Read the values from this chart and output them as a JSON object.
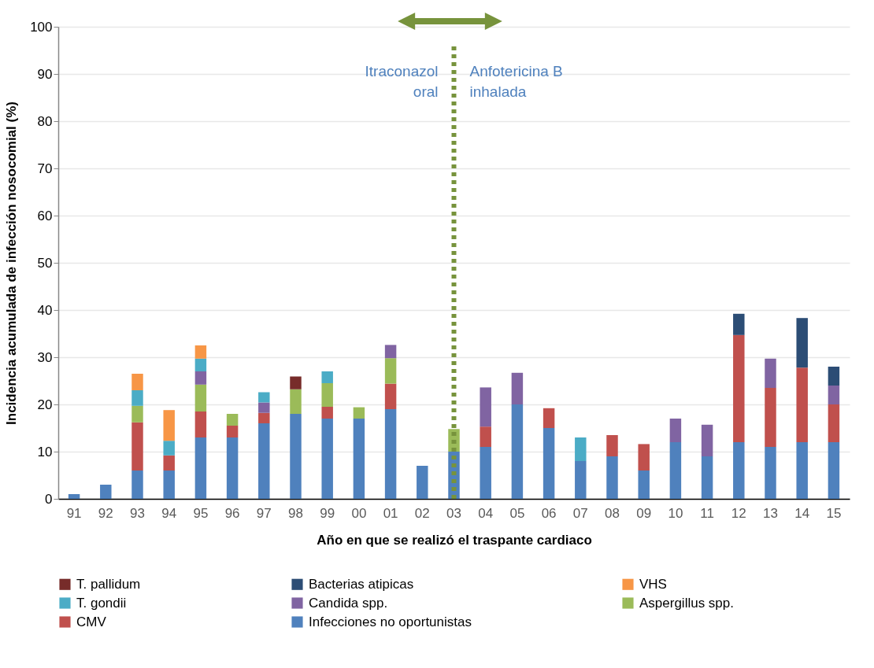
{
  "chart_data": {
    "type": "bar",
    "stacked": true,
    "xlabel": "Año en que se realizó el traspante cardiaco",
    "ylabel": "Incidencia acumulada de infección nosocomial (%)",
    "categories": [
      "91",
      "92",
      "93",
      "94",
      "95",
      "96",
      "97",
      "98",
      "99",
      "00",
      "01",
      "02",
      "03",
      "04",
      "05",
      "06",
      "07",
      "08",
      "09",
      "10",
      "11",
      "12",
      "13",
      "14",
      "15"
    ],
    "series": [
      {
        "name": "Infecciones no oportunistas",
        "color": "#4f81bd",
        "values": [
          1,
          3,
          6,
          6,
          13,
          13,
          16,
          18,
          17,
          17,
          19,
          7,
          10,
          11,
          20,
          15,
          8,
          9,
          6,
          12,
          9,
          12,
          11,
          12,
          12
        ]
      },
      {
        "name": "CMV",
        "color": "#c0504d",
        "values": [
          null,
          null,
          10.2,
          3.2,
          5.5,
          2.5,
          2.2,
          null,
          2.5,
          null,
          5.4,
          null,
          null,
          4.3,
          null,
          4.2,
          null,
          4.5,
          5.6,
          null,
          null,
          22.7,
          12.5,
          15.8,
          8
        ]
      },
      {
        "name": "Aspergillus spp.",
        "color": "#9bbb59",
        "values": [
          null,
          null,
          3.5,
          null,
          5.7,
          2.5,
          null,
          5.2,
          5,
          2.4,
          5.4,
          null,
          4.8,
          null,
          null,
          null,
          null,
          null,
          null,
          null,
          null,
          null,
          null,
          null,
          null
        ]
      },
      {
        "name": "Candida spp.",
        "color": "#8064a2",
        "values": [
          null,
          null,
          null,
          null,
          2.8,
          null,
          2.2,
          null,
          null,
          null,
          2.8,
          null,
          null,
          8.3,
          6.7,
          null,
          null,
          null,
          null,
          5,
          6.7,
          null,
          6.2,
          null,
          4
        ]
      },
      {
        "name": "T. gondii",
        "color": "#4bacc6",
        "values": [
          null,
          null,
          3.3,
          3.1,
          2.7,
          null,
          2.2,
          null,
          2.5,
          null,
          null,
          null,
          null,
          null,
          null,
          null,
          5,
          null,
          null,
          null,
          null,
          null,
          null,
          null,
          null
        ]
      },
      {
        "name": "VHS",
        "color": "#f79646",
        "values": [
          null,
          null,
          3.5,
          6.5,
          2.8,
          null,
          null,
          null,
          null,
          null,
          null,
          null,
          null,
          null,
          null,
          null,
          null,
          null,
          null,
          null,
          null,
          null,
          null,
          null,
          null
        ]
      },
      {
        "name": "Bacterias atipicas",
        "color": "#2c4d75",
        "values": [
          null,
          null,
          null,
          null,
          null,
          null,
          null,
          null,
          null,
          null,
          null,
          null,
          null,
          null,
          null,
          null,
          null,
          null,
          null,
          null,
          null,
          4.5,
          null,
          10.5,
          4
        ]
      },
      {
        "name": "T. pallidum",
        "color": "#772c2a",
        "values": [
          null,
          null,
          null,
          null,
          null,
          null,
          null,
          2.7,
          null,
          null,
          null,
          null,
          null,
          null,
          null,
          null,
          null,
          null,
          null,
          null,
          null,
          null,
          null,
          null,
          null
        ]
      }
    ],
    "ylim": [
      0,
      100
    ],
    "yticks": [
      0,
      10,
      20,
      30,
      40,
      50,
      60,
      70,
      80,
      90,
      100
    ],
    "grid": "y",
    "legend": "bottom",
    "ref_lines": [
      {
        "axis": "x",
        "value": "03",
        "color": "#77933c",
        "line_style": "dotted"
      }
    ],
    "annotations": [
      "Itraconazol\noral",
      "Anfotericina B\ninhalada"
    ]
  }
}
